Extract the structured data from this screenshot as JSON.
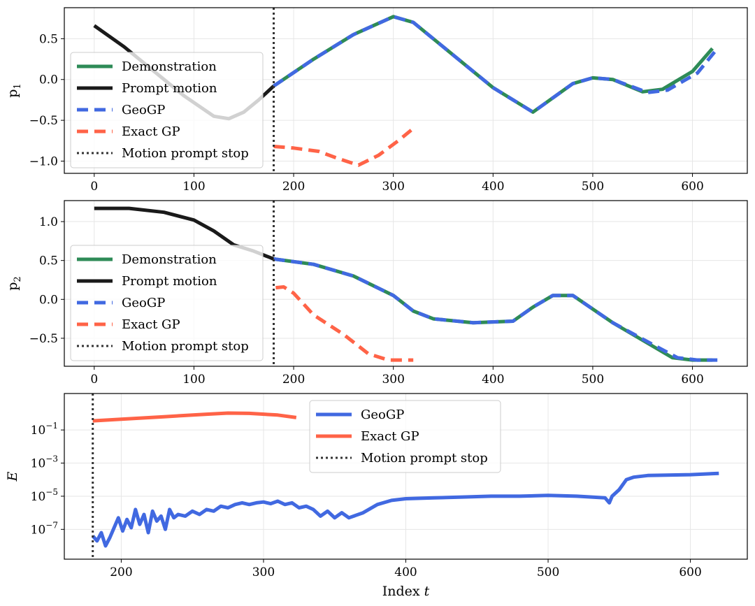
{
  "colors": {
    "demo": "#2e8b57",
    "prompt": "#1a1a1a",
    "geogp": "#4169e1",
    "exact": "#ff6347",
    "stop": "#333333"
  },
  "chart_data": [
    {
      "type": "line",
      "ylabel_main": "p",
      "ylabel_sub": "1",
      "xlim": [
        -30,
        655
      ],
      "ylim": [
        -1.15,
        0.88
      ],
      "xticks": [
        0,
        100,
        200,
        300,
        400,
        500,
        600
      ],
      "yticks": [
        0.5,
        0.0,
        -0.5,
        -1.0
      ],
      "ytick_labels": [
        "0.5",
        "0.0",
        "−0.5",
        "−1.0"
      ],
      "legend_loc": "lower-left",
      "legend": [
        "Demonstration",
        "Prompt motion",
        "GeoGP",
        "Exact GP",
        "Motion prompt stop"
      ],
      "stop_x": 180,
      "series": [
        {
          "name": "Demonstration",
          "x": [
            180,
            220,
            260,
            300,
            320,
            360,
            400,
            440,
            480,
            500,
            520,
            550,
            570,
            600,
            620
          ],
          "y": [
            -0.08,
            0.25,
            0.55,
            0.77,
            0.7,
            0.3,
            -0.1,
            -0.4,
            -0.05,
            0.02,
            0.0,
            -0.15,
            -0.12,
            0.1,
            0.38
          ]
        },
        {
          "name": "Prompt motion",
          "x": [
            0,
            30,
            60,
            90,
            120,
            135,
            150,
            165,
            180
          ],
          "y": [
            0.66,
            0.4,
            0.1,
            -0.2,
            -0.45,
            -0.48,
            -0.4,
            -0.25,
            -0.08
          ]
        },
        {
          "name": "GeoGP",
          "x": [
            180,
            220,
            260,
            300,
            320,
            360,
            400,
            440,
            480,
            500,
            520,
            555,
            575,
            605,
            625
          ],
          "y": [
            -0.08,
            0.25,
            0.55,
            0.77,
            0.7,
            0.3,
            -0.1,
            -0.4,
            -0.05,
            0.02,
            0.0,
            -0.16,
            -0.13,
            0.08,
            0.38
          ]
        },
        {
          "name": "Exact GP",
          "x": [
            180,
            200,
            225,
            245,
            265,
            285,
            305,
            322
          ],
          "y": [
            -0.82,
            -0.84,
            -0.88,
            -0.97,
            -1.05,
            -0.93,
            -0.75,
            -0.58
          ]
        }
      ]
    },
    {
      "type": "line",
      "ylabel_main": "p",
      "ylabel_sub": "2",
      "xlim": [
        -30,
        655
      ],
      "ylim": [
        -0.86,
        1.27
      ],
      "xticks": [
        0,
        100,
        200,
        300,
        400,
        500,
        600
      ],
      "yticks": [
        1.0,
        0.5,
        0.0,
        -0.5
      ],
      "ytick_labels": [
        "1.0",
        "0.5",
        "0.0",
        "−0.5"
      ],
      "legend_loc": "lower-left",
      "legend": [
        "Demonstration",
        "Prompt motion",
        "GeoGP",
        "Exact GP",
        "Motion prompt stop"
      ],
      "stop_x": 180,
      "series": [
        {
          "name": "Demonstration",
          "x": [
            180,
            220,
            260,
            300,
            320,
            340,
            380,
            420,
            440,
            460,
            480,
            520,
            560,
            580,
            600,
            620
          ],
          "y": [
            0.52,
            0.45,
            0.3,
            0.05,
            -0.15,
            -0.25,
            -0.3,
            -0.28,
            -0.1,
            0.05,
            0.05,
            -0.3,
            -0.6,
            -0.75,
            -0.78,
            -0.78
          ]
        },
        {
          "name": "Prompt motion",
          "x": [
            0,
            35,
            70,
            100,
            120,
            140,
            160,
            180
          ],
          "y": [
            1.17,
            1.17,
            1.12,
            1.02,
            0.88,
            0.7,
            0.62,
            0.52
          ]
        },
        {
          "name": "GeoGP",
          "x": [
            180,
            220,
            260,
            300,
            320,
            340,
            380,
            420,
            440,
            460,
            480,
            520,
            560,
            585,
            605,
            625
          ],
          "y": [
            0.52,
            0.45,
            0.3,
            0.05,
            -0.15,
            -0.25,
            -0.3,
            -0.28,
            -0.1,
            0.05,
            0.05,
            -0.3,
            -0.58,
            -0.75,
            -0.78,
            -0.78
          ]
        },
        {
          "name": "Exact GP",
          "x": [
            182,
            190,
            200,
            220,
            250,
            275,
            295,
            320
          ],
          "y": [
            0.15,
            0.16,
            0.08,
            -0.2,
            -0.45,
            -0.7,
            -0.78,
            -0.78
          ]
        }
      ]
    },
    {
      "type": "line",
      "ylabel": "E",
      "xlabel": "Index t",
      "yscale": "log",
      "xlim": [
        160,
        640
      ],
      "ylim_exp": [
        -8.8,
        1.2
      ],
      "xticks": [
        200,
        300,
        400,
        500,
        600
      ],
      "ytick_exps": [
        -1,
        -3,
        -5,
        -7
      ],
      "legend_loc": "upper-center",
      "legend": [
        "GeoGP",
        "Exact GP",
        "Motion prompt stop"
      ],
      "stop_x": 180,
      "series": [
        {
          "name": "GeoGP",
          "x": [
            180,
            183,
            186,
            189,
            192,
            195,
            198,
            201,
            204,
            207,
            210,
            213,
            216,
            219,
            222,
            225,
            228,
            231,
            234,
            237,
            240,
            245,
            250,
            255,
            260,
            265,
            270,
            275,
            280,
            285,
            290,
            295,
            300,
            305,
            310,
            315,
            320,
            325,
            330,
            335,
            340,
            345,
            350,
            355,
            360,
            370,
            380,
            390,
            400,
            420,
            440,
            460,
            480,
            500,
            520,
            540,
            543,
            545,
            550,
            555,
            560,
            570,
            600,
            620
          ],
          "y_exp": [
            -7.4,
            -7.7,
            -7.2,
            -8.0,
            -7.5,
            -6.9,
            -6.3,
            -7.1,
            -6.4,
            -6.9,
            -5.8,
            -6.7,
            -6.1,
            -7.2,
            -5.9,
            -6.5,
            -6.2,
            -7.0,
            -5.8,
            -6.3,
            -6.1,
            -6.2,
            -5.9,
            -6.1,
            -5.8,
            -5.9,
            -5.6,
            -5.7,
            -5.5,
            -5.4,
            -5.5,
            -5.4,
            -5.35,
            -5.45,
            -5.3,
            -5.5,
            -5.4,
            -5.7,
            -5.6,
            -5.8,
            -6.2,
            -5.9,
            -6.3,
            -6.0,
            -6.3,
            -6.0,
            -5.5,
            -5.25,
            -5.15,
            -5.1,
            -5.05,
            -5.0,
            -5.0,
            -4.95,
            -5.0,
            -5.1,
            -5.4,
            -5.0,
            -4.6,
            -4.0,
            -3.85,
            -3.75,
            -3.7,
            -3.62
          ]
        },
        {
          "name": "Exact GP",
          "x": [
            180,
            200,
            230,
            260,
            275,
            290,
            310,
            323
          ],
          "y_exp": [
            -0.45,
            -0.35,
            -0.2,
            -0.05,
            0.02,
            0.0,
            -0.1,
            -0.25
          ]
        }
      ]
    }
  ]
}
